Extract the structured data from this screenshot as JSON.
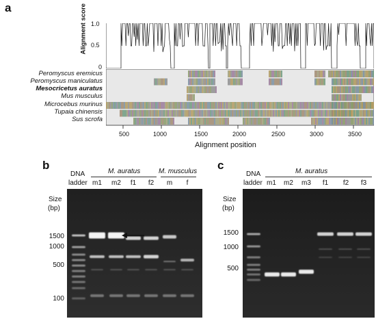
{
  "panel_a": {
    "letter": "a",
    "score_axis_label": "Alignment score",
    "score_ticks": [
      "1.0",
      "0.5",
      "0"
    ],
    "x_axis_label": "Alignment position",
    "x_ticks": [
      "500",
      "1000",
      "1500",
      "2000",
      "2500",
      "3000",
      "3500"
    ],
    "species": [
      {
        "name": "Peromyscus eremicus",
        "bold": false
      },
      {
        "name": "Peromyscus maniculatus",
        "bold": false
      },
      {
        "name": "Mesocricetus auratus",
        "bold": true
      },
      {
        "name": "Mus musculus",
        "bold": false
      },
      {
        "name": "Microcebus murinus",
        "bold": false
      },
      {
        "name": "Tupaia chinensis",
        "bold": false
      },
      {
        "name": "Sus scrofa",
        "bold": false
      }
    ]
  },
  "panel_b": {
    "letter": "b",
    "ladder_label_line1": "DNA",
    "ladder_label_line2": "ladder",
    "group1": "M. auratus",
    "group2": "M. musculus",
    "lanes": [
      "m1",
      "m2",
      "f1",
      "f2",
      "m",
      "f"
    ],
    "size_label_line1": "Size",
    "size_label_line2": "(bp)",
    "sizes": [
      "1500",
      "1000",
      "500",
      "100"
    ]
  },
  "panel_c": {
    "letter": "c",
    "ladder_label_line1": "DNA",
    "ladder_label_line2": "ladder",
    "group1": "M. auratus",
    "lanes": [
      "m1",
      "m2",
      "m3",
      "f1",
      "f2",
      "f3"
    ],
    "size_label_line1": "Size",
    "size_label_line2": "(bp)",
    "sizes": [
      "1500",
      "1000",
      "500"
    ]
  }
}
